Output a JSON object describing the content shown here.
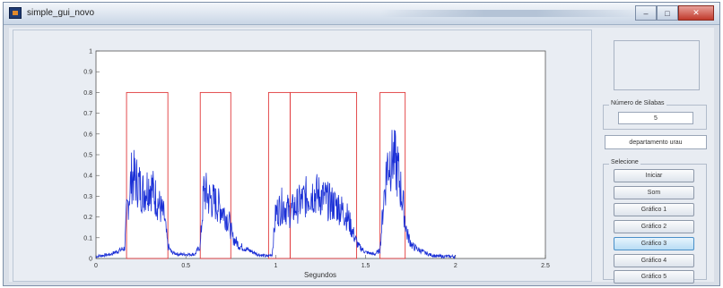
{
  "window": {
    "title": "simple_gui_novo",
    "controls": [
      "–",
      "□",
      "✕"
    ]
  },
  "plot": {
    "xlabel": "Segundos",
    "x_ticks": [
      "0",
      "0.5",
      "1",
      "1.5",
      "2",
      "2.5"
    ],
    "y_ticks": [
      "0",
      "0.1",
      "0.2",
      "0.3",
      "0.4",
      "0.5",
      "0.6",
      "0.7",
      "0.8",
      "0.9",
      "1"
    ],
    "signal_color": "#1a2fd6",
    "segment_color": "#e0383a"
  },
  "chart_data": {
    "type": "line",
    "title": "",
    "xlabel": "Segundos",
    "ylabel": "",
    "xlim": [
      0,
      2.5
    ],
    "ylim": [
      0,
      1
    ],
    "grid": false,
    "series": [
      {
        "kind": "envelope",
        "x": [
          0,
          0.08,
          0.16,
          0.17,
          0.2,
          0.23,
          0.26,
          0.3,
          0.34,
          0.38,
          0.4,
          0.42,
          0.46,
          0.5,
          0.55,
          0.58,
          0.6,
          0.63,
          0.66,
          0.7,
          0.74,
          0.76,
          0.8,
          0.85,
          0.9,
          0.95,
          0.98,
          1.0,
          1.04,
          1.08,
          1.1,
          1.15,
          1.2,
          1.25,
          1.3,
          1.35,
          1.4,
          1.44,
          1.46,
          1.5,
          1.55,
          1.58,
          1.6,
          1.62,
          1.65,
          1.68,
          1.71,
          1.73,
          1.76,
          1.8,
          1.85,
          1.9,
          1.95,
          2.0
        ],
        "y": [
          0.01,
          0.02,
          0.05,
          0.22,
          0.4,
          0.37,
          0.32,
          0.36,
          0.28,
          0.2,
          0.06,
          0.03,
          0.02,
          0.02,
          0.02,
          0.06,
          0.33,
          0.29,
          0.27,
          0.24,
          0.18,
          0.1,
          0.06,
          0.04,
          0.02,
          0.01,
          0.02,
          0.22,
          0.26,
          0.22,
          0.24,
          0.28,
          0.32,
          0.3,
          0.27,
          0.25,
          0.2,
          0.1,
          0.06,
          0.03,
          0.02,
          0.04,
          0.28,
          0.45,
          0.5,
          0.42,
          0.25,
          0.12,
          0.06,
          0.04,
          0.02,
          0.01,
          0.01,
          0.01
        ]
      }
    ],
    "segments": [
      {
        "start": 0.17,
        "end": 0.4,
        "level": 0.8
      },
      {
        "start": 0.58,
        "end": 0.75,
        "level": 0.8
      },
      {
        "start": 0.96,
        "end": 1.08,
        "level": 0.8
      },
      {
        "start": 1.08,
        "end": 1.45,
        "level": 0.8
      },
      {
        "start": 1.58,
        "end": 1.72,
        "level": 0.8
      }
    ]
  },
  "side_panel": {
    "syllables_group_title": "Número de Silabas",
    "syllables_value": "5",
    "info_text": "departamento urau",
    "select_group_title": "Selecione",
    "buttons": [
      "Iniciar",
      "Som",
      "Gráfico 1",
      "Gráfico 2",
      "Gráfico 3",
      "Gráfico 4",
      "Gráfico 5"
    ]
  }
}
